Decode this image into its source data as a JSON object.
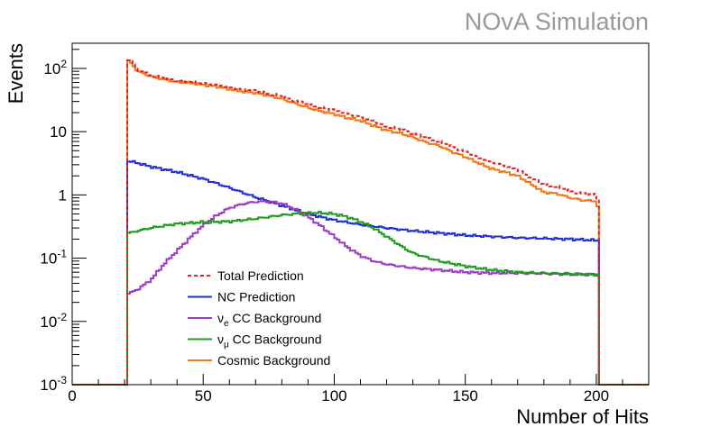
{
  "chart_data": {
    "type": "line",
    "watermark": "NOvA Simulation",
    "xlabel": "Number of Hits",
    "ylabel": "Events",
    "xlim": [
      0,
      220
    ],
    "ylim": [
      0.001,
      250
    ],
    "yscale": "log",
    "x_ticks": [
      "0",
      "50",
      "100",
      "150",
      "200"
    ],
    "y_ticks": [
      {
        "value": 0.001,
        "base": "10",
        "exp": "-3"
      },
      {
        "value": 0.01,
        "base": "10",
        "exp": "-2"
      },
      {
        "value": 0.1,
        "base": "10",
        "exp": "-1"
      },
      {
        "value": 1,
        "base": "1",
        "exp": ""
      },
      {
        "value": 10,
        "base": "10",
        "exp": ""
      },
      {
        "value": 100,
        "base": "10",
        "exp": "2"
      }
    ],
    "bin_edges_range": [
      21,
      201
    ],
    "legend_position": "bottom-left",
    "series": [
      {
        "name": "Total Prediction",
        "label_main": "Total Prediction",
        "label_sub": "",
        "label_rest": "",
        "color": "#e8231f",
        "dash": "4,3",
        "x": [
          21,
          22,
          25,
          30,
          35,
          40,
          45,
          50,
          55,
          60,
          65,
          70,
          75,
          80,
          85,
          90,
          95,
          100,
          105,
          110,
          115,
          120,
          125,
          130,
          135,
          140,
          145,
          150,
          155,
          160,
          165,
          170,
          175,
          180,
          185,
          190,
          195,
          200,
          201
        ],
        "y": [
          140,
          140,
          95,
          78,
          70,
          64,
          62,
          58,
          55,
          50,
          46,
          44,
          40,
          36,
          31,
          27,
          24,
          22,
          19,
          17,
          14.5,
          12,
          11,
          9.5,
          8,
          7,
          5.8,
          4.8,
          3.9,
          3.3,
          2.9,
          2.5,
          1.9,
          1.45,
          1.35,
          1.15,
          1.05,
          1.0,
          0.7
        ]
      },
      {
        "name": "NC Prediction",
        "label_main": "NC Prediction",
        "label_sub": "",
        "label_rest": "",
        "color": "#1f2fd0",
        "dash": "",
        "x": [
          21,
          22,
          25,
          30,
          40,
          50,
          60,
          70,
          80,
          90,
          100,
          110,
          120,
          130,
          140,
          150,
          160,
          170,
          180,
          190,
          201
        ],
        "y": [
          3.4,
          3.4,
          3.2,
          2.8,
          2.3,
          1.8,
          1.3,
          0.92,
          0.68,
          0.5,
          0.4,
          0.34,
          0.3,
          0.27,
          0.25,
          0.23,
          0.22,
          0.21,
          0.205,
          0.2,
          0.19
        ]
      },
      {
        "name": "νe CC Background",
        "label_main": "ν",
        "label_sub": "e",
        "label_rest": " CC Background",
        "color": "#9b3cc6",
        "dash": "",
        "x": [
          21,
          22,
          25,
          30,
          35,
          40,
          45,
          50,
          55,
          60,
          65,
          70,
          75,
          80,
          85,
          90,
          95,
          100,
          105,
          110,
          115,
          120,
          130,
          140,
          150,
          160,
          170,
          180,
          190,
          201
        ],
        "y": [
          0.028,
          0.028,
          0.032,
          0.045,
          0.08,
          0.13,
          0.21,
          0.33,
          0.47,
          0.62,
          0.72,
          0.78,
          0.79,
          0.74,
          0.6,
          0.45,
          0.32,
          0.22,
          0.15,
          0.11,
          0.09,
          0.08,
          0.07,
          0.065,
          0.06,
          0.058,
          0.058,
          0.057,
          0.055,
          0.055
        ]
      },
      {
        "name": "νμ CC Background",
        "label_main": "ν",
        "label_sub": "μ",
        "label_rest": " CC Background",
        "color": "#1f9a1f",
        "dash": "",
        "x": [
          21,
          22,
          25,
          30,
          40,
          50,
          60,
          70,
          80,
          90,
          95,
          100,
          105,
          110,
          115,
          120,
          125,
          130,
          140,
          150,
          160,
          170,
          180,
          190,
          201
        ],
        "y": [
          0.25,
          0.25,
          0.27,
          0.3,
          0.35,
          0.37,
          0.38,
          0.42,
          0.48,
          0.52,
          0.52,
          0.5,
          0.45,
          0.38,
          0.3,
          0.22,
          0.16,
          0.12,
          0.09,
          0.075,
          0.065,
          0.06,
          0.058,
          0.057,
          0.055
        ]
      },
      {
        "name": "Cosmic Background",
        "label_main": "Cosmic Background",
        "label_sub": "",
        "label_rest": "",
        "color": "#f07818",
        "dash": "",
        "x": [
          21,
          22,
          25,
          30,
          35,
          40,
          45,
          50,
          55,
          60,
          65,
          70,
          75,
          80,
          85,
          90,
          95,
          100,
          105,
          110,
          115,
          120,
          125,
          130,
          135,
          140,
          145,
          150,
          155,
          160,
          165,
          170,
          175,
          180,
          185,
          190,
          195,
          200,
          201
        ],
        "y": [
          130,
          130,
          90,
          75,
          67,
          61,
          59,
          55,
          52,
          47,
          43,
          41,
          37,
          33,
          28,
          24,
          21,
          19,
          16.5,
          15,
          12.5,
          10.5,
          9.5,
          8.2,
          6.8,
          6,
          4.8,
          4,
          3.2,
          2.6,
          2.3,
          2.0,
          1.5,
          1.1,
          1.05,
          0.9,
          0.82,
          0.8,
          0.55
        ]
      }
    ]
  }
}
